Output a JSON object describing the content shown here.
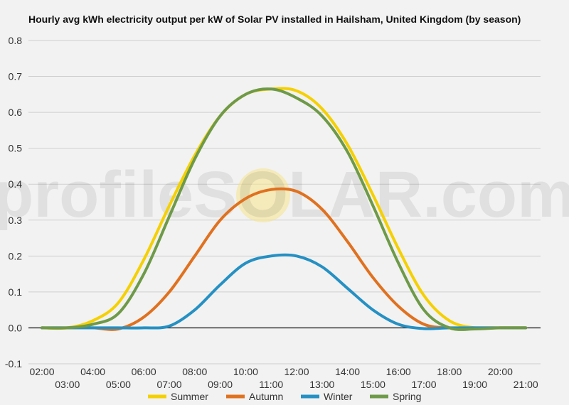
{
  "chart_data": {
    "type": "line",
    "title": "Hourly avg kWh electricity output per kW of Solar PV installed in Hailsham, United Kingdom (by season)",
    "watermark": "profileSOLAR.com",
    "xlabel": "",
    "ylabel": "",
    "ylim": [
      -0.1,
      0.8
    ],
    "yticks": [
      "-0.1",
      "0.0",
      "0.1",
      "0.2",
      "0.3",
      "0.4",
      "0.5",
      "0.6",
      "0.7",
      "0.8"
    ],
    "x": [
      "02:00",
      "03:00",
      "04:00",
      "05:00",
      "06:00",
      "07:00",
      "08:00",
      "09:00",
      "10:00",
      "11:00",
      "12:00",
      "13:00",
      "14:00",
      "15:00",
      "16:00",
      "17:00",
      "18:00",
      "19:00",
      "20:00",
      "21:00"
    ],
    "grid": true,
    "legend_position": "bottom",
    "series": [
      {
        "name": "Summer",
        "color": "#f5d000",
        "values": [
          0.0,
          0.0,
          0.02,
          0.07,
          0.19,
          0.34,
          0.48,
          0.59,
          0.65,
          0.665,
          0.66,
          0.61,
          0.51,
          0.37,
          0.22,
          0.09,
          0.02,
          0.0,
          0.0,
          0.0
        ]
      },
      {
        "name": "Autumn",
        "color": "#e0711f",
        "values": [
          0.0,
          0.0,
          0.0,
          -0.003,
          0.03,
          0.1,
          0.2,
          0.3,
          0.36,
          0.385,
          0.38,
          0.33,
          0.24,
          0.14,
          0.06,
          0.01,
          0.0,
          0.0,
          0.0,
          0.0
        ]
      },
      {
        "name": "Winter",
        "color": "#2590c3",
        "values": [
          0.0,
          0.0,
          0.0,
          0.0,
          0.0,
          0.005,
          0.05,
          0.12,
          0.18,
          0.2,
          0.2,
          0.17,
          0.11,
          0.05,
          0.01,
          -0.002,
          0.0,
          0.0,
          0.0,
          0.0
        ]
      },
      {
        "name": "Spring",
        "color": "#6e9a48",
        "values": [
          0.0,
          0.0,
          0.01,
          0.04,
          0.15,
          0.31,
          0.47,
          0.59,
          0.65,
          0.665,
          0.64,
          0.59,
          0.49,
          0.34,
          0.18,
          0.05,
          0.0,
          -0.003,
          0.0,
          0.0
        ]
      }
    ]
  }
}
